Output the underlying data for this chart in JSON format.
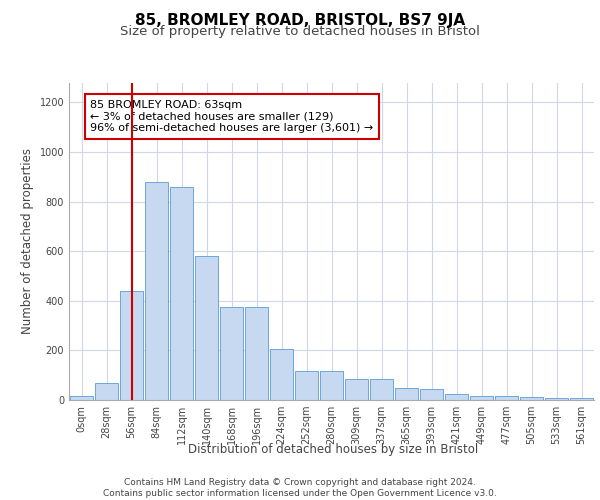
{
  "title1": "85, BROMLEY ROAD, BRISTOL, BS7 9JA",
  "title2": "Size of property relative to detached houses in Bristol",
  "xlabel": "Distribution of detached houses by size in Bristol",
  "ylabel": "Number of detached properties",
  "bar_labels": [
    "0sqm",
    "28sqm",
    "56sqm",
    "84sqm",
    "112sqm",
    "140sqm",
    "168sqm",
    "196sqm",
    "224sqm",
    "252sqm",
    "280sqm",
    "309sqm",
    "337sqm",
    "365sqm",
    "393sqm",
    "421sqm",
    "449sqm",
    "477sqm",
    "505sqm",
    "533sqm",
    "561sqm"
  ],
  "bar_values": [
    15,
    68,
    440,
    880,
    860,
    580,
    375,
    375,
    205,
    115,
    115,
    85,
    85,
    50,
    45,
    25,
    18,
    18,
    12,
    8,
    8
  ],
  "bar_color": "#c6d9f0",
  "bar_edge_color": "#5b9bd5",
  "vline_x": 2,
  "vline_color": "#cc0000",
  "annotation_text": "85 BROMLEY ROAD: 63sqm\n← 3% of detached houses are smaller (129)\n96% of semi-detached houses are larger (3,601) →",
  "annotation_box_color": "#ffffff",
  "annotation_box_edge_color": "#cc0000",
  "ylim": [
    0,
    1280
  ],
  "yticks": [
    0,
    200,
    400,
    600,
    800,
    1000,
    1200
  ],
  "footer_text": "Contains HM Land Registry data © Crown copyright and database right 2024.\nContains public sector information licensed under the Open Government Licence v3.0.",
  "bg_color": "#ffffff",
  "grid_color": "#d0d8e8",
  "title1_fontsize": 11,
  "title2_fontsize": 9.5,
  "axis_label_fontsize": 8.5,
  "tick_fontsize": 7,
  "annotation_fontsize": 8,
  "footer_fontsize": 6.5
}
